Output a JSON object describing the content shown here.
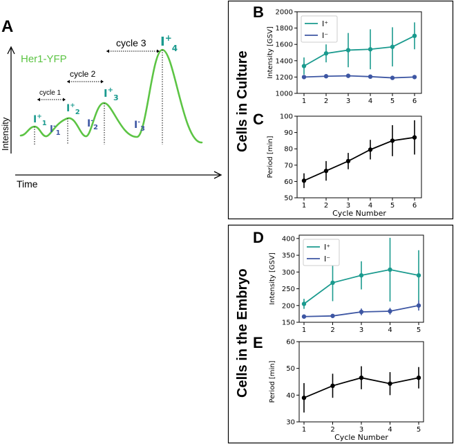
{
  "colors": {
    "teal": "#1a9a8e",
    "blue": "#3d56a3",
    "black": "#000000",
    "green": "#5cc444"
  },
  "panel_a": {
    "label": "A",
    "legend": "Her1-YFP",
    "xlabel": "Time",
    "ylabel": "Intensity",
    "cycles": [
      "cycle 1",
      "cycle 2",
      "cycle 3"
    ],
    "peaks": [
      {
        "base": "I",
        "sup": "+",
        "sub": "1"
      },
      {
        "base": "I",
        "sup": "+",
        "sub": "2"
      },
      {
        "base": "I",
        "sup": "+",
        "sub": "3"
      },
      {
        "base": "I",
        "sup": "+",
        "sub": "4"
      }
    ],
    "troughs": [
      {
        "base": "I",
        "sup": "-",
        "sub": "1"
      },
      {
        "base": "I",
        "sup": "-",
        "sub": "2"
      },
      {
        "base": "I",
        "sup": "-",
        "sub": "3"
      }
    ]
  },
  "group_culture": {
    "title": "Cells in Culture"
  },
  "group_embryo": {
    "title": "Cells in the Embryo"
  },
  "chart_data": [
    {
      "id": "B",
      "label": "B",
      "type": "line",
      "x": [
        1,
        2,
        3,
        4,
        5,
        6
      ],
      "ylim": [
        1000,
        2000
      ],
      "yticks": [
        1000,
        1200,
        1400,
        1600,
        1800,
        2000
      ],
      "xlabel": "",
      "ylabel": "Intensity [GSV]",
      "legend": [
        "I⁺",
        "I⁻"
      ],
      "series": [
        {
          "name": "I+",
          "color": "teal",
          "values": [
            1335,
            1490,
            1530,
            1540,
            1570,
            1705
          ],
          "err": [
            105,
            110,
            210,
            245,
            240,
            165
          ]
        },
        {
          "name": "I-",
          "color": "blue",
          "values": [
            1200,
            1210,
            1215,
            1205,
            1190,
            1200
          ],
          "err": [
            15,
            15,
            25,
            15,
            20,
            15
          ]
        }
      ]
    },
    {
      "id": "C",
      "label": "C",
      "type": "line",
      "x": [
        1,
        2,
        3,
        4,
        5,
        6
      ],
      "ylim": [
        50,
        100
      ],
      "yticks": [
        50,
        60,
        70,
        80,
        90,
        100
      ],
      "xlabel": "Cycle Number",
      "ylabel": "Period [min]",
      "series": [
        {
          "name": "Period",
          "color": "black",
          "values": [
            60.5,
            66.5,
            72.5,
            79.5,
            85,
            87
          ],
          "err": [
            4.5,
            6,
            5,
            6,
            9.5,
            10.5
          ]
        }
      ]
    },
    {
      "id": "D",
      "label": "D",
      "type": "line",
      "x": [
        1,
        2,
        3,
        4,
        5
      ],
      "ylim": [
        150,
        410
      ],
      "yticks": [
        150,
        200,
        250,
        300,
        350,
        400
      ],
      "xlabel": "",
      "ylabel": "Intensity [GSV]",
      "legend": [
        "I⁺",
        "I⁻"
      ],
      "series": [
        {
          "name": "I+",
          "color": "teal",
          "values": [
            205,
            268,
            290,
            307,
            290
          ],
          "err": [
            15,
            55,
            42,
            95,
            75
          ]
        },
        {
          "name": "I-",
          "color": "blue",
          "values": [
            167,
            169,
            181,
            183,
            200
          ],
          "err": [
            5,
            6,
            10,
            10,
            15
          ]
        }
      ]
    },
    {
      "id": "E",
      "label": "E",
      "type": "line",
      "x": [
        1,
        2,
        3,
        4,
        5
      ],
      "ylim": [
        30,
        60
      ],
      "yticks": [
        30,
        40,
        50,
        60
      ],
      "xlabel": "Cycle Number",
      "ylabel": "Period [min]",
      "series": [
        {
          "name": "Period",
          "color": "black",
          "values": [
            39,
            43.5,
            46.5,
            44.3,
            46.5
          ],
          "err": [
            5.5,
            4.5,
            4.3,
            4.3,
            4
          ]
        }
      ]
    }
  ]
}
